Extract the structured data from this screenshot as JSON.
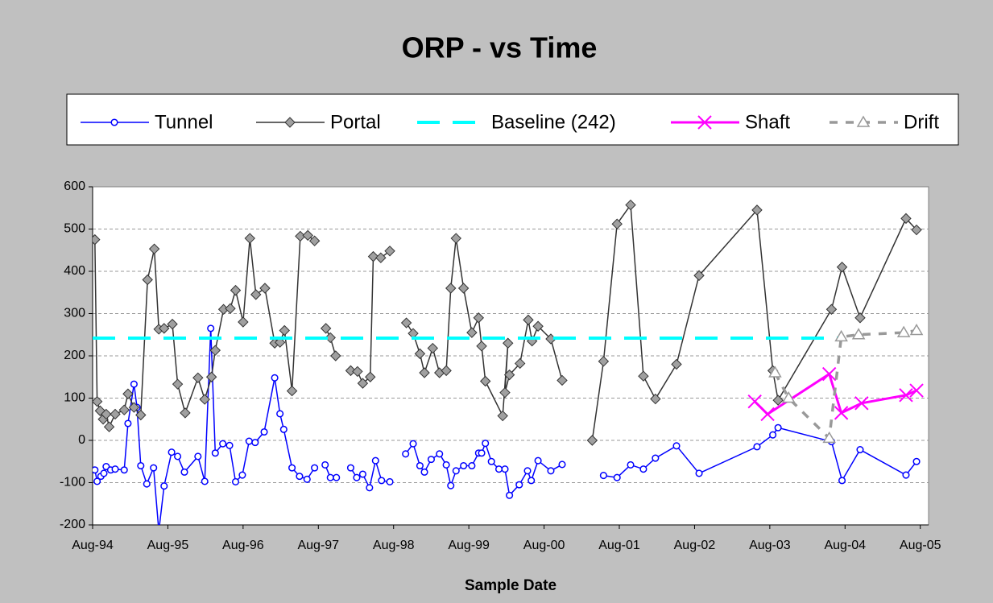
{
  "chart_data": {
    "type": "line",
    "title": "ORP - vs Time",
    "x_label": "Sample Date",
    "xlim": [
      1994.58,
      2005.69
    ],
    "ylim": [
      -200,
      600
    ],
    "xticks": [
      {
        "value": 1994.58,
        "label": "Aug-94"
      },
      {
        "value": 1995.58,
        "label": "Aug-95"
      },
      {
        "value": 1996.58,
        "label": "Aug-96"
      },
      {
        "value": 1997.58,
        "label": "Aug-97"
      },
      {
        "value": 1998.58,
        "label": "Aug-98"
      },
      {
        "value": 1999.58,
        "label": "Aug-99"
      },
      {
        "value": 2000.58,
        "label": "Aug-00"
      },
      {
        "value": 2001.58,
        "label": "Aug-01"
      },
      {
        "value": 2002.58,
        "label": "Aug-02"
      },
      {
        "value": 2003.58,
        "label": "Aug-03"
      },
      {
        "value": 2004.58,
        "label": "Aug-04"
      },
      {
        "value": 2005.58,
        "label": "Aug-05"
      }
    ],
    "yticks": [
      -200,
      -100,
      0,
      100,
      200,
      300,
      400,
      500,
      600
    ],
    "grid": true,
    "legend": "top",
    "series": [
      {
        "name": "Tunnel",
        "color": "#0000ff",
        "marker": "circle",
        "line_style": "solid",
        "x": [
          1994.61,
          1994.64,
          1994.69,
          1994.73,
          1994.76,
          1994.82,
          1994.88,
          1995.0,
          1995.05,
          1995.13,
          1995.17,
          1995.22,
          1995.3,
          1995.39,
          1995.46,
          1995.53,
          1995.63,
          1995.71,
          1995.8,
          1995.98,
          1996.07,
          1996.15,
          1996.21,
          1996.31,
          1996.4,
          1996.48,
          1996.57,
          1996.66,
          1996.74,
          1996.86,
          1997.0,
          1997.07,
          1997.12,
          1997.23,
          1997.33,
          1997.43,
          1997.53,
          1997.56,
          1997.67,
          1997.74,
          1997.82,
          1997.9,
          1998.01,
          1998.09,
          1998.17,
          1998.26,
          1998.34,
          1998.42,
          1998.53,
          1998.65,
          1998.74,
          1998.84,
          1998.93,
          1998.99,
          1999.08,
          1999.19,
          1999.28,
          1999.34,
          1999.41,
          1999.51,
          1999.62,
          1999.71,
          1999.75,
          1999.8,
          1999.88,
          1999.98,
          2000.06,
          2000.12,
          2000.25,
          2000.36,
          2000.41,
          2000.5,
          2000.67,
          2000.82,
          2001.0,
          2001.37,
          2001.55,
          2001.73,
          2001.9,
          2002.06,
          2002.34,
          2002.64,
          2003.41,
          2003.62,
          2003.69,
          2004.4,
          2004.54,
          2004.78,
          2005.39,
          2005.53
        ],
        "values": [
          -70,
          -97,
          -85,
          -78,
          -62,
          -70,
          -68,
          -70,
          40,
          133,
          78,
          -60,
          -103,
          -65,
          -215,
          -108,
          -28,
          -38,
          -75,
          -38,
          -97,
          265,
          -30,
          -8,
          -12,
          -98,
          -82,
          -2,
          -5,
          20,
          148,
          63,
          26,
          -65,
          -85,
          -92,
          -65,
          null,
          -58,
          -88,
          -88,
          null,
          -65,
          -88,
          -80,
          -112,
          -48,
          -95,
          -98,
          null,
          -32,
          -8,
          -60,
          -75,
          -45,
          -32,
          -58,
          -107,
          -72,
          -60,
          -60,
          -30,
          -30,
          -7,
          -50,
          -68,
          -68,
          -130,
          -105,
          -72,
          -95,
          -48,
          -72,
          -57,
          null,
          -83,
          -88,
          -58,
          -68,
          -42,
          -13,
          -78,
          -15,
          13,
          30,
          -3,
          -95,
          -22,
          -82,
          -50
        ]
      },
      {
        "name": "Portal",
        "color": "#333333",
        "marker": "diamond",
        "line_style": "solid",
        "x": [
          1994.61,
          1994.64,
          1994.68,
          1994.72,
          1994.76,
          1994.8,
          1994.88,
          1995.0,
          1995.05,
          1995.13,
          1995.22,
          1995.31,
          1995.4,
          1995.46,
          1995.53,
          1995.64,
          1995.71,
          1995.81,
          1995.98,
          1996.07,
          1996.16,
          1996.21,
          1996.32,
          1996.41,
          1996.48,
          1996.58,
          1996.67,
          1996.75,
          1996.87,
          1997.0,
          1997.07,
          1997.13,
          1997.23,
          1997.34,
          1997.44,
          1997.53,
          1997.56,
          1997.68,
          1997.74,
          1997.81,
          1997.9,
          1998.01,
          1998.1,
          1998.17,
          1998.27,
          1998.31,
          1998.41,
          1998.53,
          1998.65,
          1998.75,
          1998.84,
          1998.93,
          1998.99,
          1999.1,
          1999.19,
          1999.28,
          1999.34,
          1999.41,
          1999.51,
          1999.62,
          1999.71,
          1999.75,
          1999.8,
          2000.03,
          2000.1,
          2000.06,
          2000.12,
          2000.26,
          2000.37,
          2000.42,
          2000.5,
          2000.67,
          2000.82,
          2001.0,
          2001.22,
          2001.37,
          2001.55,
          2001.73,
          2001.9,
          2002.06,
          2002.34,
          2002.64,
          2003.41,
          2003.62,
          2003.69,
          2004.4,
          2004.54,
          2004.78,
          2005.39,
          2005.53
        ],
        "values": [
          475,
          92,
          70,
          50,
          62,
          32,
          62,
          72,
          110,
          78,
          60,
          380,
          453,
          263,
          265,
          275,
          133,
          65,
          148,
          97,
          150,
          213,
          310,
          312,
          355,
          280,
          478,
          345,
          360,
          230,
          232,
          260,
          117,
          483,
          485,
          472,
          null,
          265,
          243,
          200,
          null,
          165,
          163,
          135,
          150,
          435,
          432,
          448,
          null,
          278,
          253,
          205,
          160,
          218,
          160,
          165,
          360,
          478,
          360,
          255,
          290,
          223,
          140,
          58,
          230,
          113,
          155,
          182,
          285,
          235,
          270,
          240,
          142,
          null,
          0,
          187,
          512,
          557,
          152,
          98,
          180,
          390,
          545,
          165,
          95,
          310,
          410,
          290,
          525,
          498
        ]
      },
      {
        "name": "Baseline (242)",
        "color": "#00ffff",
        "marker": "none",
        "line_style": "long-dash",
        "x": [
          1994.58,
          2004.58
        ],
        "values": [
          242,
          242
        ]
      },
      {
        "name": "Shaft",
        "color": "#ff00ff",
        "marker": "x",
        "line_style": "solid",
        "x": [
          2003.38,
          2003.55,
          2004.37,
          2004.53,
          2004.8,
          2005.39,
          2005.53
        ],
        "values": [
          92,
          62,
          157,
          65,
          88,
          107,
          118
        ]
      },
      {
        "name": "Drift",
        "color": "#999999",
        "marker": "triangle",
        "line_style": "dashed",
        "x": [
          2003.65,
          2003.83,
          2004.37,
          2004.53,
          2004.76,
          2005.36,
          2005.53
        ],
        "values": [
          160,
          100,
          5,
          245,
          250,
          255,
          260
        ]
      }
    ]
  }
}
